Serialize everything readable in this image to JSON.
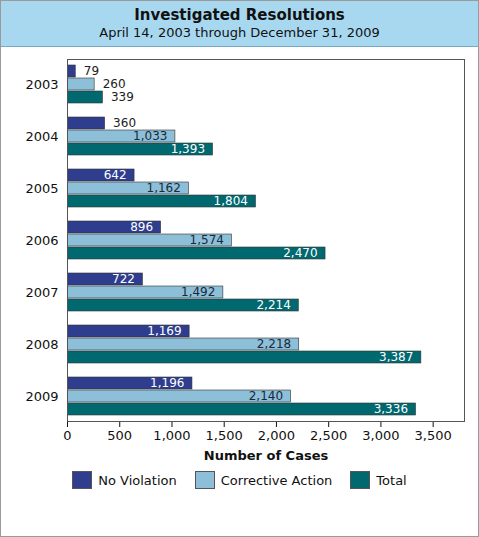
{
  "chart_data": {
    "type": "bar",
    "orientation": "horizontal",
    "title": "Investigated Resolutions",
    "subtitle": "April 14, 2003 through December 31, 2009",
    "x_label": "Number of Cases",
    "categories": [
      "2003",
      "2004",
      "2005",
      "2006",
      "2007",
      "2008",
      "2009"
    ],
    "series": [
      {
        "name": "No Violation",
        "color": "#2e3d8e",
        "values": [
          79,
          360,
          642,
          896,
          722,
          1169,
          1196
        ],
        "value_labels": [
          "79",
          "360",
          "642",
          "896",
          "722",
          "1,169",
          "1,196"
        ]
      },
      {
        "name": "Corrective Action",
        "color": "#8dbfd8",
        "values": [
          260,
          1033,
          1162,
          1574,
          1492,
          2218,
          2140
        ],
        "value_labels": [
          "260",
          "1,033",
          "1,162",
          "1,574",
          "1,492",
          "2,218",
          "2,140"
        ]
      },
      {
        "name": "Total",
        "color": "#00686f",
        "values": [
          339,
          1393,
          1804,
          2470,
          2214,
          3387,
          3336
        ],
        "value_labels": [
          "339",
          "1,393",
          "1,804",
          "2,470",
          "2,214",
          "3,387",
          "3,336"
        ]
      }
    ],
    "xlim": [
      0,
      3800
    ],
    "xticks": [
      0,
      500,
      {
        "value": 1000,
        "label": "1,000"
      },
      {
        "value": 1500,
        "label": "1,500"
      },
      {
        "value": 2000,
        "label": "2,000"
      },
      {
        "value": 2500,
        "label": "2,500"
      },
      {
        "value": 3000,
        "label": "3,000"
      },
      {
        "value": 3500,
        "label": "3,500"
      }
    ],
    "data_labels": true,
    "grid": false,
    "legend": "bottom"
  }
}
